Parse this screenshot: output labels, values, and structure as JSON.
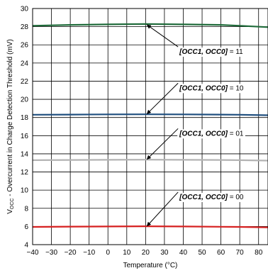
{
  "chart_data": {
    "type": "line",
    "xlabel": "Temperature (°C)",
    "ylabel_main": "V",
    "ylabel_sub": "OCC",
    "ylabel_rest": " - Overcurrent in Charge Detection Threshold (mV)",
    "xlim": [
      -40,
      85
    ],
    "ylim": [
      4,
      30
    ],
    "xticks": [
      -40,
      -30,
      -20,
      -10,
      0,
      10,
      20,
      30,
      40,
      50,
      60,
      70,
      80
    ],
    "yticks": [
      4,
      6,
      8,
      10,
      12,
      14,
      16,
      18,
      20,
      22,
      24,
      26,
      28,
      30
    ],
    "grid": true,
    "x": [
      -40,
      -20,
      0,
      20,
      40,
      60,
      70,
      85
    ],
    "series": [
      {
        "name": "11",
        "color": "#1f6b3a",
        "values": [
          28.1,
          28.2,
          28.25,
          28.3,
          28.25,
          28.2,
          28.1,
          27.95
        ]
      },
      {
        "name": "10",
        "color": "#1f4f7f",
        "values": [
          18.3,
          18.32,
          18.34,
          18.35,
          18.34,
          18.32,
          18.3,
          18.25
        ]
      },
      {
        "name": "01",
        "color": "#b3b3b3",
        "values": [
          13.3,
          13.32,
          13.34,
          13.35,
          13.34,
          13.32,
          13.3,
          13.25
        ]
      },
      {
        "name": "00",
        "color": "#d62020",
        "values": [
          5.95,
          5.98,
          6.0,
          6.02,
          6.0,
          5.97,
          5.95,
          5.9
        ]
      }
    ],
    "annotations": [
      {
        "key": "[OCC1, OCC0]",
        "eq": " = ",
        "val": "11",
        "text_at": [
          38,
          25
        ],
        "arrow_to": [
          20,
          28.2
        ]
      },
      {
        "key": "[OCC1, OCC0]",
        "eq": " = ",
        "val": "10",
        "text_at": [
          38,
          21
        ],
        "arrow_to": [
          20,
          18.4
        ]
      },
      {
        "key": "[OCC1, OCC0]",
        "eq": " = ",
        "val": "01",
        "text_at": [
          38,
          16
        ],
        "arrow_to": [
          20,
          13.4
        ]
      },
      {
        "key": "[OCC1, OCC0]",
        "eq": " = ",
        "val": "00",
        "text_at": [
          38,
          9
        ],
        "arrow_to": [
          20,
          6.05
        ]
      }
    ]
  }
}
